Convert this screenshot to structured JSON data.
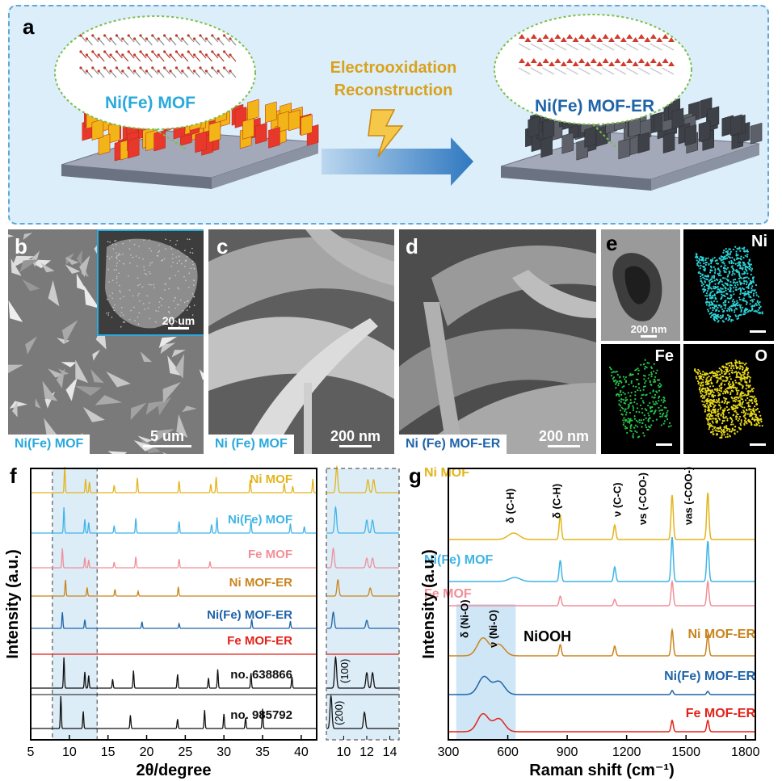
{
  "panel_a": {
    "label": "a",
    "left_title": "Ni(Fe) MOF",
    "right_title": "Ni(Fe) MOF-ER",
    "arrow_text_1": "Electrooxidation",
    "arrow_text_2": "Reconstruction"
  },
  "panel_b": {
    "label": "b",
    "caption": "Ni(Fe) MOF",
    "scale": "5 um",
    "inset_scale": "20 um"
  },
  "panel_c": {
    "label": "c",
    "caption": "Ni (Fe) MOF",
    "scale": "200 nm"
  },
  "panel_d": {
    "label": "d",
    "caption": "Ni (Fe) MOF-ER",
    "scale": "200 nm"
  },
  "panel_e": {
    "label": "e",
    "scale": "200 nm",
    "maps": [
      "Ni",
      "Fe",
      "O"
    ]
  },
  "chart_data": [
    {
      "type": "line",
      "panel": "f",
      "xlabel": "2θ/degree",
      "ylabel": "Intensity (a.u.)",
      "xlim": [
        5,
        42
      ],
      "x_ticks": [
        5,
        10,
        15,
        20,
        25,
        30,
        35,
        40
      ],
      "zoom_x_ticks": [
        10,
        12,
        14
      ],
      "zoom_peak_labels": [
        "(100)",
        "(200)"
      ],
      "series": [
        {
          "name": "Ni MOF",
          "color": "#e3b51a",
          "peaks": [
            9.4,
            12.1,
            12.6,
            15.8,
            18.8,
            24.2,
            28.3,
            29.0,
            33.4,
            37.8,
            38.9,
            41.5
          ]
        },
        {
          "name": "Ni(Fe) MOF",
          "color": "#3fb4e6",
          "peaks": [
            9.3,
            12.0,
            12.5,
            15.8,
            18.6,
            24.2,
            28.4,
            29.1,
            33.5,
            38.6,
            40.4
          ]
        },
        {
          "name": "Fe MOF",
          "color": "#f08f9a",
          "peaks": [
            9.1,
            12.0,
            12.5,
            15.8,
            18.6,
            24.2,
            28.2
          ]
        },
        {
          "name": "Ni MOF-ER",
          "color": "#c9841d",
          "peaks": [
            9.5,
            12.3,
            15.9,
            18.9,
            24.1
          ]
        },
        {
          "name": "Ni(Fe) MOF-ER",
          "color": "#1f64a8",
          "peaks": [
            9.1,
            12.0,
            19.4,
            24.2,
            33.6,
            38.6
          ]
        },
        {
          "name": "Fe MOF-ER",
          "color": "#e2231a",
          "peaks": []
        },
        {
          "name": "no. 638866",
          "color": "#111111",
          "peaks": [
            9.3,
            12.0,
            12.5,
            15.6,
            18.3,
            24.0,
            28.0,
            29.2,
            33.5,
            38.8
          ]
        },
        {
          "name": "no. 985792",
          "color": "#111111",
          "peaks": [
            8.9,
            11.8,
            17.9,
            24.0,
            27.5,
            30.0,
            32.8,
            35.0
          ]
        }
      ]
    },
    {
      "type": "line",
      "panel": "g",
      "xlabel": "Raman shift (cm⁻¹)",
      "ylabel": "Intensity (a.u.)",
      "xlim": [
        300,
        1850
      ],
      "x_ticks": [
        300,
        600,
        900,
        1200,
        1500,
        1800
      ],
      "band_labels": [
        "δ (C-H)",
        "δ (C-H)",
        "ν (C-C)",
        "νs (-COO-)",
        "νas (-COO-)",
        "δ (Ni-O)",
        "ν (Ni-O)"
      ],
      "annotation": "NiOOH",
      "series": [
        {
          "name": "Ni MOF",
          "color": "#e3b51a",
          "peaks": [
            {
              "x": 630,
              "h": 8
            },
            {
              "x": 865,
              "h": 30
            },
            {
              "x": 1140,
              "h": 18
            },
            {
              "x": 1430,
              "h": 55
            },
            {
              "x": 1610,
              "h": 58
            }
          ]
        },
        {
          "name": "Ni(Fe) MOF",
          "color": "#3fb4e6",
          "peaks": [
            {
              "x": 635,
              "h": 5
            },
            {
              "x": 865,
              "h": 26
            },
            {
              "x": 1140,
              "h": 18
            },
            {
              "x": 1430,
              "h": 55
            },
            {
              "x": 1610,
              "h": 50
            }
          ]
        },
        {
          "name": "Fe MOF",
          "color": "#f08f9a",
          "peaks": [
            {
              "x": 865,
              "h": 12
            },
            {
              "x": 1140,
              "h": 8
            },
            {
              "x": 1430,
              "h": 30
            },
            {
              "x": 1610,
              "h": 30
            }
          ]
        },
        {
          "name": "Ni MOF-ER",
          "color": "#c9841d",
          "peaks": [
            {
              "x": 475,
              "h": 22
            },
            {
              "x": 555,
              "h": 14
            },
            {
              "x": 865,
              "h": 14
            },
            {
              "x": 1140,
              "h": 12
            },
            {
              "x": 1430,
              "h": 32
            },
            {
              "x": 1610,
              "h": 26
            }
          ]
        },
        {
          "name": "Ni(Fe) MOF-ER",
          "color": "#1f64a8",
          "peaks": [
            {
              "x": 480,
              "h": 22
            },
            {
              "x": 555,
              "h": 16
            },
            {
              "x": 1430,
              "h": 5
            },
            {
              "x": 1610,
              "h": 4
            }
          ]
        },
        {
          "name": "Fe MOF-ER",
          "color": "#e2231a",
          "peaks": [
            {
              "x": 475,
              "h": 22
            },
            {
              "x": 555,
              "h": 16
            },
            {
              "x": 1430,
              "h": 14
            },
            {
              "x": 1610,
              "h": 14
            }
          ]
        }
      ]
    }
  ]
}
